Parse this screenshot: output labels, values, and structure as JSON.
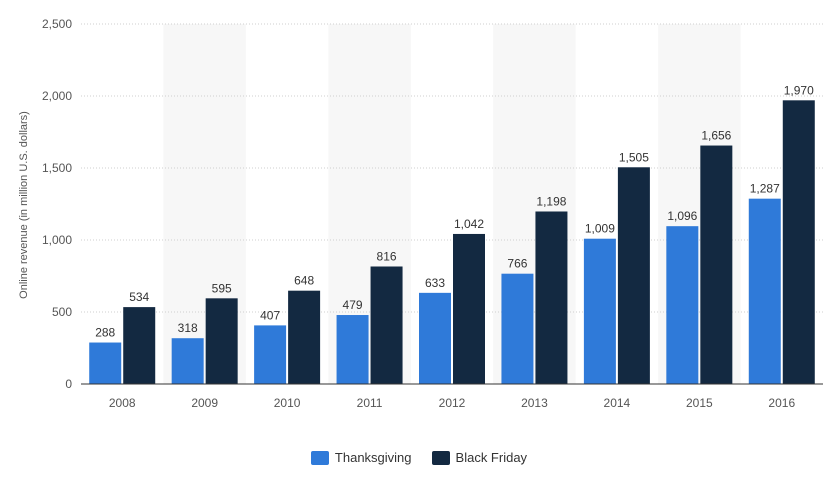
{
  "colors": {
    "thanksgiving": "#2f7ad9",
    "black_friday": "#132941",
    "band": "#f7f7f7",
    "grid": "#cfcfcf",
    "axis": "#333333"
  },
  "chart_data": {
    "type": "bar",
    "categories": [
      "2008",
      "2009",
      "2010",
      "2011",
      "2012",
      "2013",
      "2014",
      "2015",
      "2016"
    ],
    "series": [
      {
        "name": "Thanksgiving",
        "values": [
          288,
          318,
          407,
          479,
          633,
          766,
          1009,
          1096,
          1287
        ],
        "labels": [
          "288",
          "318",
          "407",
          "479",
          "633",
          "766",
          "1,009",
          "1,096",
          "1,287"
        ]
      },
      {
        "name": "Black Friday",
        "values": [
          534,
          595,
          648,
          816,
          1042,
          1198,
          1505,
          1656,
          1970
        ],
        "labels": [
          "534",
          "595",
          "648",
          "816",
          "1,042",
          "1,198",
          "1,505",
          "1,656",
          "1,970"
        ]
      }
    ],
    "ylabel": "Online revenue (in million U.S. dollars)",
    "ylim": [
      0,
      2500
    ],
    "yticks": [
      0,
      500,
      1000,
      1500,
      2000,
      2500
    ],
    "ytick_labels": [
      "0",
      "500",
      "1,000",
      "1,500",
      "2,000",
      "2,500"
    ],
    "grid": true,
    "legend_position": "bottom-center"
  }
}
